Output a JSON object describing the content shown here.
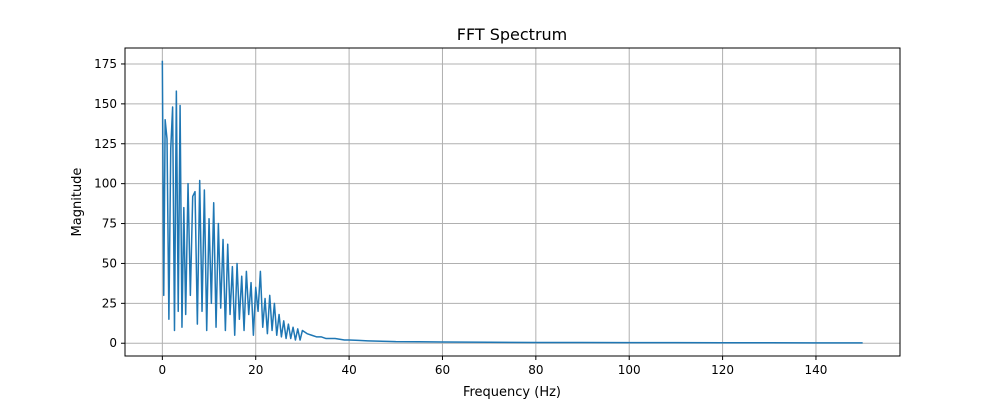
{
  "chart_data": {
    "type": "line",
    "title": "FFT Spectrum",
    "xlabel": "Frequency (Hz)",
    "ylabel": "Magnitude",
    "xlim": [
      -8,
      158
    ],
    "ylim": [
      -8,
      185
    ],
    "xticks": [
      0,
      20,
      40,
      60,
      80,
      100,
      120,
      140
    ],
    "yticks": [
      0,
      25,
      50,
      75,
      100,
      125,
      150,
      175
    ],
    "grid": true,
    "line_color": "#1f77b4",
    "series": [
      {
        "x": [
          0,
          0.3,
          0.6,
          1,
          1.4,
          1.8,
          2.2,
          2.6,
          3,
          3.4,
          3.8,
          4.2,
          4.6,
          5,
          5.5,
          6,
          6.5,
          7,
          7.5,
          8,
          8.5,
          9,
          9.5,
          10,
          10.5,
          11,
          11.5,
          12,
          12.5,
          13,
          13.5,
          14,
          14.5,
          15,
          15.5,
          16,
          16.5,
          17,
          17.5,
          18,
          18.5,
          19,
          19.5,
          20,
          20.5,
          21,
          21.5,
          22,
          22.5,
          23,
          23.5,
          24,
          24.5,
          25,
          25.5,
          26,
          26.5,
          27,
          27.5,
          28,
          28.5,
          29,
          29.5,
          30,
          31,
          32,
          33,
          34,
          35,
          36,
          37,
          38,
          39,
          40,
          42,
          44,
          46,
          48,
          50,
          55,
          60,
          65,
          70,
          80,
          90,
          100,
          110,
          120,
          130,
          140,
          150
        ],
        "y": [
          177,
          30,
          140,
          128,
          15,
          122,
          148,
          8,
          158,
          20,
          149,
          10,
          85,
          18,
          100,
          30,
          92,
          95,
          12,
          102,
          20,
          96,
          8,
          78,
          25,
          88,
          10,
          75,
          22,
          65,
          8,
          62,
          18,
          48,
          5,
          50,
          15,
          42,
          8,
          45,
          18,
          38,
          5,
          35,
          20,
          45,
          10,
          28,
          6,
          30,
          8,
          25,
          5,
          18,
          4,
          14,
          3,
          12,
          3,
          10,
          2,
          9,
          2,
          8,
          6,
          5,
          4,
          4,
          3,
          3,
          3,
          2.5,
          2,
          2,
          1.8,
          1.5,
          1.3,
          1.2,
          1,
          0.9,
          0.8,
          0.7,
          0.6,
          0.5,
          0.5,
          0.4,
          0.4,
          0.3,
          0.3,
          0.2,
          0.2
        ]
      }
    ]
  }
}
